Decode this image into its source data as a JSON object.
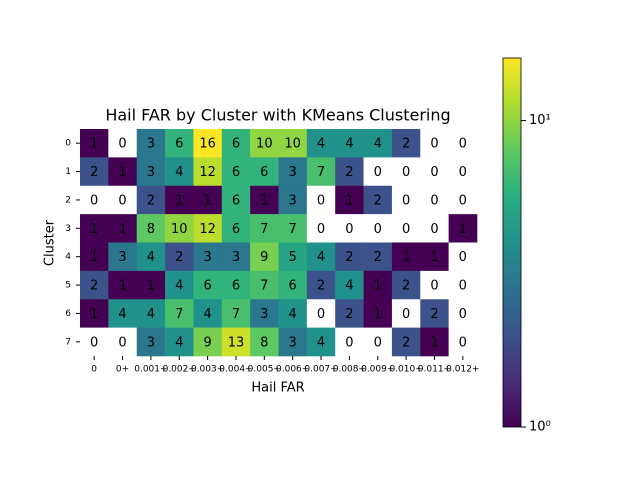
{
  "chart_data": {
    "type": "heatmap",
    "title": "Hail FAR by Cluster with KMeans Clustering",
    "x_label": "Hail FAR",
    "y_label": "Cluster",
    "x_categories": [
      "0",
      "0+",
      "0.001+",
      "0.002+",
      "0.003+",
      "0.004+",
      "0.005+",
      "0.006+",
      "0.007+",
      "0.008+",
      "0.009+",
      "0.010+",
      "0.011+",
      "0.012+"
    ],
    "y_categories": [
      "0",
      "1",
      "2",
      "3",
      "4",
      "5",
      "6",
      "7"
    ],
    "values": [
      [
        1,
        0,
        3,
        6,
        16,
        6,
        10,
        10,
        4,
        4,
        4,
        2,
        0,
        0
      ],
      [
        2,
        1,
        3,
        4,
        12,
        6,
        6,
        3,
        7,
        2,
        0,
        0,
        0,
        0
      ],
      [
        0,
        0,
        2,
        1,
        1,
        6,
        1,
        3,
        0,
        1,
        2,
        0,
        0,
        0
      ],
      [
        1,
        1,
        8,
        10,
        12,
        6,
        7,
        7,
        0,
        0,
        0,
        0,
        0,
        1
      ],
      [
        1,
        3,
        4,
        2,
        3,
        3,
        9,
        5,
        4,
        2,
        2,
        1,
        1,
        0
      ],
      [
        2,
        1,
        1,
        4,
        6,
        6,
        7,
        6,
        2,
        4,
        1,
        2,
        0,
        0
      ],
      [
        1,
        4,
        4,
        7,
        4,
        7,
        3,
        4,
        0,
        2,
        1,
        0,
        2,
        0
      ],
      [
        0,
        0,
        3,
        4,
        9,
        13,
        8,
        3,
        4,
        0,
        0,
        2,
        1,
        0
      ]
    ],
    "colormap": "viridis",
    "color_scale": "log",
    "clim": [
      1,
      16
    ],
    "cticks": [
      {
        "value": 1,
        "label": "10⁰"
      },
      {
        "value": 10,
        "label": "10¹"
      }
    ]
  }
}
